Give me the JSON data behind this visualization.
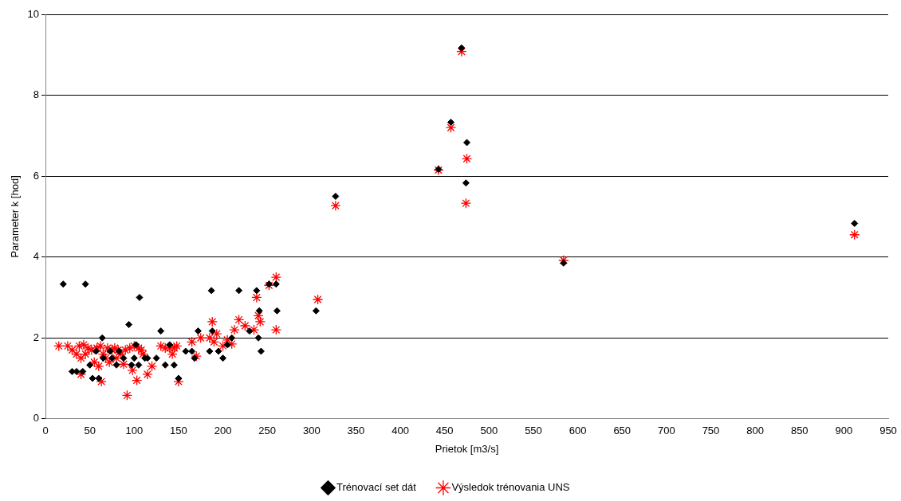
{
  "chart_data": {
    "type": "scatter",
    "xlabel": "Prietok [m3/s]",
    "ylabel": "Parameter k [hod]",
    "xlim": [
      0,
      950
    ],
    "xticks": [
      0,
      50,
      100,
      150,
      200,
      250,
      300,
      350,
      400,
      450,
      500,
      550,
      600,
      650,
      700,
      750,
      800,
      850,
      900,
      950
    ],
    "ylim": [
      0,
      10
    ],
    "yticks": [
      0,
      2,
      4,
      6,
      8,
      10
    ],
    "grid": "y",
    "legend": "bottom",
    "series": [
      {
        "name": "Trénovací set dát",
        "color": "#000000",
        "marker": "diamond",
        "x": [
          20,
          45,
          106,
          94,
          130,
          64,
          187,
          218,
          238,
          260,
          261,
          241,
          188,
          172,
          210,
          240,
          200,
          243,
          185,
          195,
          230,
          252,
          305,
          327,
          443,
          457,
          469,
          475,
          474,
          584,
          912,
          150,
          145,
          135,
          30,
          35,
          53,
          60,
          65,
          42,
          80,
          90,
          100,
          112,
          115,
          102,
          73,
          83,
          57,
          168,
          165,
          205,
          158,
          140,
          125,
          97,
          75,
          105,
          88,
          50
        ],
        "values": [
          3.33,
          3.33,
          3.0,
          2.33,
          2.17,
          2.0,
          3.17,
          3.17,
          3.17,
          3.33,
          2.67,
          2.67,
          2.17,
          2.17,
          2.0,
          2.0,
          1.5,
          1.67,
          1.67,
          1.67,
          2.17,
          3.33,
          2.67,
          5.5,
          6.17,
          7.33,
          9.17,
          6.83,
          5.83,
          3.85,
          4.83,
          1.0,
          1.33,
          1.33,
          1.17,
          1.17,
          1.0,
          1.0,
          1.5,
          1.17,
          1.33,
          null,
          1.5,
          1.5,
          1.5,
          1.83,
          1.67,
          1.67,
          1.67,
          1.5,
          1.67,
          1.83,
          1.67,
          1.83,
          1.5,
          1.33,
          1.5,
          1.33,
          1.5,
          1.33
        ]
      },
      {
        "name": "Výsledok trénovania UNS",
        "color": "#ff0000",
        "marker": "cross",
        "x": [
          15,
          25,
          30,
          35,
          38,
          40,
          43,
          45,
          48,
          52,
          55,
          58,
          60,
          62,
          63,
          65,
          68,
          70,
          72,
          75,
          78,
          80,
          82,
          85,
          88,
          90,
          92,
          95,
          98,
          100,
          103,
          105,
          108,
          110,
          115,
          120,
          130,
          135,
          140,
          143,
          145,
          148,
          150,
          165,
          170,
          175,
          185,
          188,
          190,
          193,
          200,
          205,
          210,
          213,
          218,
          225,
          235,
          238,
          240,
          242,
          252,
          260,
          260,
          307,
          327,
          443,
          457,
          469,
          475,
          474,
          584,
          912,
          40
        ],
        "values": [
          1.8,
          1.8,
          1.7,
          1.6,
          1.8,
          1.5,
          1.83,
          1.6,
          1.75,
          1.7,
          1.4,
          1.75,
          1.3,
          1.8,
          0.92,
          1.6,
          1.5,
          1.75,
          1.4,
          1.7,
          1.75,
          1.5,
          1.7,
          1.6,
          1.35,
          1.7,
          0.58,
          1.75,
          1.2,
          1.8,
          0.95,
          1.75,
          1.7,
          1.6,
          1.1,
          1.3,
          1.8,
          1.75,
          1.75,
          1.6,
          1.75,
          1.8,
          0.92,
          1.9,
          1.55,
          2.0,
          2.0,
          2.4,
          1.9,
          2.1,
          1.8,
          1.95,
          1.85,
          2.2,
          2.45,
          2.3,
          2.2,
          3.0,
          2.55,
          2.4,
          3.3,
          3.5,
          2.2,
          2.95,
          5.27,
          6.15,
          7.2,
          9.08,
          6.43,
          5.33,
          3.92,
          4.55,
          1.1
        ]
      }
    ]
  }
}
